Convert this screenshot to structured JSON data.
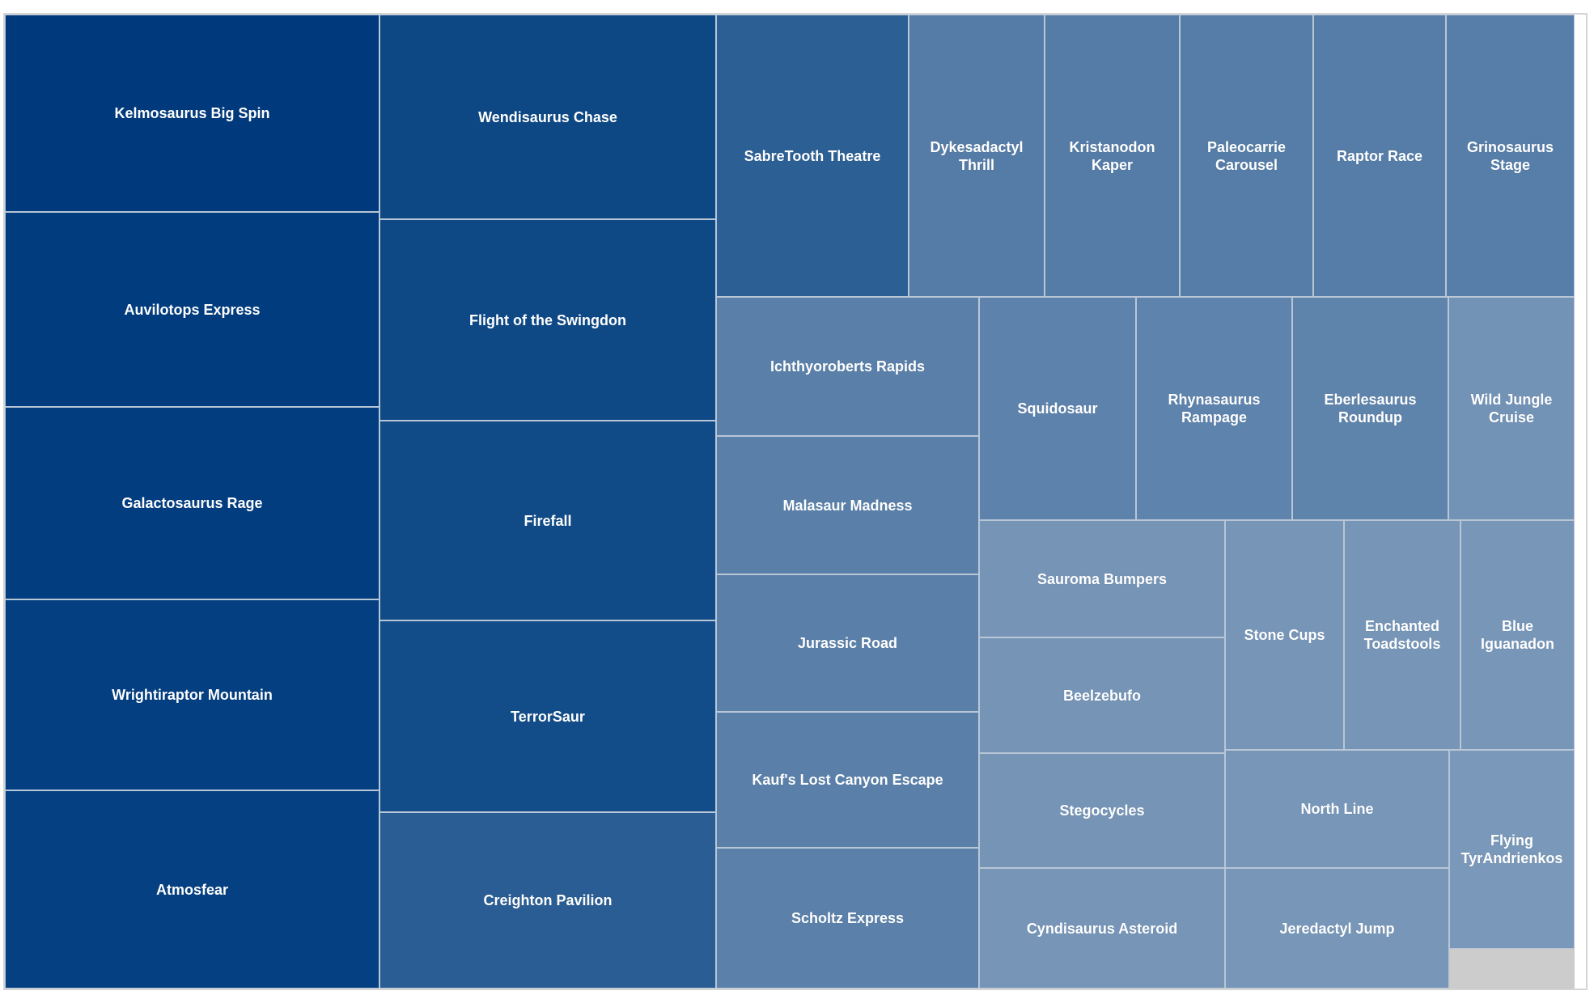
{
  "chart_data": {
    "type": "treemap",
    "items": [
      {
        "name": "Kelmosaurus Big Spin",
        "color": "#003a7d"
      },
      {
        "name": "Auvilotops Express",
        "color": "#013c7f"
      },
      {
        "name": "Galactosaurus Rage",
        "color": "#023d80"
      },
      {
        "name": "Wrightiraptor Mountain",
        "color": "#033f81"
      },
      {
        "name": "Atmosfear",
        "color": "#054182"
      },
      {
        "name": "Wendisaurus Chase",
        "color": "#0d4885"
      },
      {
        "name": "Flight of the Swingdon",
        "color": "#0e4986"
      },
      {
        "name": "Firefall",
        "color": "#104b87"
      },
      {
        "name": "TerrorSaur",
        "color": "#134d89"
      },
      {
        "name": "Creighton Pavilion",
        "color": "#295d93"
      },
      {
        "name": "SabreTooth Theatre",
        "color": "#2c5f94"
      },
      {
        "name": "Dykesadactyl Thrill",
        "color": "#557ca6"
      },
      {
        "name": "Kristanodon Kaper",
        "color": "#557ca6"
      },
      {
        "name": "Paleocarrie Carousel",
        "color": "#567da7"
      },
      {
        "name": "Raptor Race",
        "color": "#567da7"
      },
      {
        "name": "Grinosaurus Stage",
        "color": "#577ea8"
      },
      {
        "name": "Ichthyoroberts Rapids",
        "color": "#5a80a9"
      },
      {
        "name": "Malasaur Madness",
        "color": "#5a80a9"
      },
      {
        "name": "Jurassic Road",
        "color": "#5a80a9"
      },
      {
        "name": "Kauf's Lost Canyon Escape",
        "color": "#5a80a9"
      },
      {
        "name": "Scholtz Express",
        "color": "#5b81aa"
      },
      {
        "name": "Squidosaur",
        "color": "#5d82ab"
      },
      {
        "name": "Rhynasaurus Rampage",
        "color": "#5e83ac"
      },
      {
        "name": "Eberlesaurus Roundup",
        "color": "#5f84ac"
      },
      {
        "name": "Wild Jungle Cruise",
        "color": "#7393b6"
      },
      {
        "name": "Sauroma Bumpers",
        "color": "#7594b6"
      },
      {
        "name": "Beelzebufo",
        "color": "#7594b6"
      },
      {
        "name": "Stegocycles",
        "color": "#7594b6"
      },
      {
        "name": "Cyndisaurus Asteroid",
        "color": "#7695b7"
      },
      {
        "name": "Stone Cups",
        "color": "#7695b7"
      },
      {
        "name": "Enchanted Toadstools",
        "color": "#7695b7"
      },
      {
        "name": "Blue Iguanadon",
        "color": "#7796b8"
      },
      {
        "name": "North Line",
        "color": "#7796b8"
      },
      {
        "name": "Jeredactyl Jump",
        "color": "#7897b8"
      },
      {
        "name": "Flying TyrAndrienkos",
        "color": "#7a98b9"
      },
      {
        "name": "",
        "color": "#cccccc"
      }
    ]
  }
}
